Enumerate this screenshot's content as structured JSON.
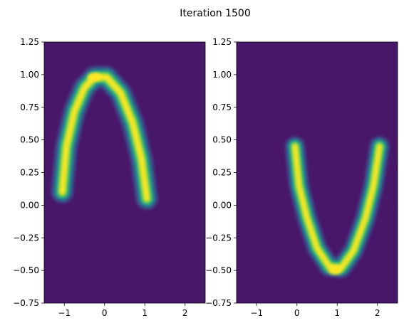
{
  "figure": {
    "suptitle": "Iteration 1500"
  },
  "chart_data": [
    {
      "type": "heatmap",
      "subtype": "filled-contour",
      "colormap": "viridis",
      "xlim": [
        -1.5,
        2.5
      ],
      "ylim": [
        -0.75,
        1.25
      ],
      "xticks": [
        -1,
        0,
        1,
        2
      ],
      "xtick_labels": [
        "−1",
        "0",
        "1",
        "2"
      ],
      "yticks": [
        -0.75,
        -0.5,
        -0.25,
        0.0,
        0.25,
        0.5,
        0.75,
        1.0,
        1.25
      ],
      "ytick_labels": [
        "−0.75",
        "−0.50",
        "−0.25",
        "0.00",
        "0.25",
        "0.50",
        "0.75",
        "1.00",
        "1.25"
      ],
      "grid": false,
      "density_ridge": {
        "shape": "inverted-parabola",
        "points": [
          {
            "x": -1.05,
            "y": 0.1,
            "w": 0.1
          },
          {
            "x": -0.95,
            "y": 0.45,
            "w": 0.12
          },
          {
            "x": -0.75,
            "y": 0.72,
            "w": 0.13
          },
          {
            "x": -0.5,
            "y": 0.9,
            "w": 0.13
          },
          {
            "x": -0.25,
            "y": 0.98,
            "w": 0.13
          },
          {
            "x": 0.05,
            "y": 0.98,
            "w": 0.12
          },
          {
            "x": 0.4,
            "y": 0.86,
            "w": 0.12
          },
          {
            "x": 0.7,
            "y": 0.63,
            "w": 0.12
          },
          {
            "x": 0.92,
            "y": 0.35,
            "w": 0.11
          },
          {
            "x": 1.05,
            "y": 0.05,
            "w": 0.09
          }
        ],
        "peak": {
          "x": -0.25,
          "y": 0.98
        }
      }
    },
    {
      "type": "heatmap",
      "subtype": "filled-contour",
      "colormap": "viridis",
      "xlim": [
        -1.5,
        2.5
      ],
      "ylim": [
        -0.75,
        1.25
      ],
      "xticks": [
        -1,
        0,
        1,
        2
      ],
      "xtick_labels": [
        "−1",
        "0",
        "1",
        "2"
      ],
      "yticks": [
        -0.75,
        -0.5,
        -0.25,
        0.0,
        0.25,
        0.5,
        0.75,
        1.0,
        1.25
      ],
      "ytick_labels": [
        "−0.75",
        "−0.50",
        "−0.25",
        "0.00",
        "0.25",
        "0.50",
        "0.75",
        "1.00",
        "1.25"
      ],
      "grid": false,
      "density_ridge": {
        "shape": "parabola",
        "points": [
          {
            "x": -0.05,
            "y": 0.45,
            "w": 0.09
          },
          {
            "x": 0.05,
            "y": 0.15,
            "w": 0.1
          },
          {
            "x": 0.25,
            "y": -0.1,
            "w": 0.11
          },
          {
            "x": 0.5,
            "y": -0.33,
            "w": 0.12
          },
          {
            "x": 0.8,
            "y": -0.47,
            "w": 0.11
          },
          {
            "x": 1.1,
            "y": -0.48,
            "w": 0.11
          },
          {
            "x": 1.4,
            "y": -0.35,
            "w": 0.11
          },
          {
            "x": 1.7,
            "y": -0.1,
            "w": 0.11
          },
          {
            "x": 1.9,
            "y": 0.15,
            "w": 0.1
          },
          {
            "x": 2.05,
            "y": 0.45,
            "w": 0.09
          }
        ],
        "peak": {
          "x": 0.95,
          "y": -0.5
        }
      }
    }
  ]
}
